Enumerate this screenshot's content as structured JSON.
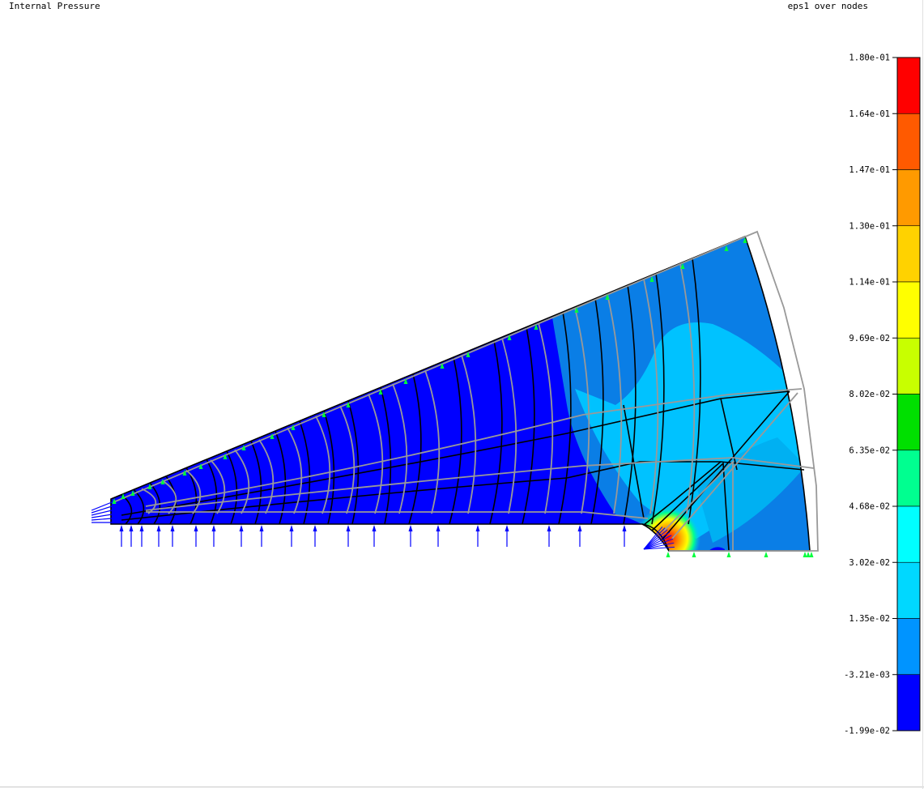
{
  "header": {
    "left_title": "Internal Pressure",
    "right_title": "eps1 over nodes"
  },
  "legend": {
    "labels": [
      "1.80e-01",
      "1.64e-01",
      "1.47e-01",
      "1.30e-01",
      "1.14e-01",
      "9.69e-02",
      "8.02e-02",
      "6.35e-02",
      "4.68e-02",
      "3.02e-02",
      "1.35e-02",
      "-3.21e-03",
      "-1.99e-02"
    ],
    "colors": [
      "#ff0000",
      "#ff5a00",
      "#ff9a00",
      "#ffd200",
      "#ffff00",
      "#c8ff00",
      "#00e000",
      "#00ff90",
      "#00ffff",
      "#00d8ff",
      "#0094ff",
      "#0000ff"
    ]
  },
  "field_colors": {
    "low": "#0000ff",
    "mid_low": "#0a7ee6",
    "mid": "#00c2ff",
    "mid2": "#00b0f2",
    "high": "#ffd200",
    "peak": "#ff0000"
  },
  "marker_colors": {
    "support": "#00ff3c",
    "load": "#0000ff",
    "deformed_mesh": "#999999",
    "original_mesh": "#000000"
  }
}
